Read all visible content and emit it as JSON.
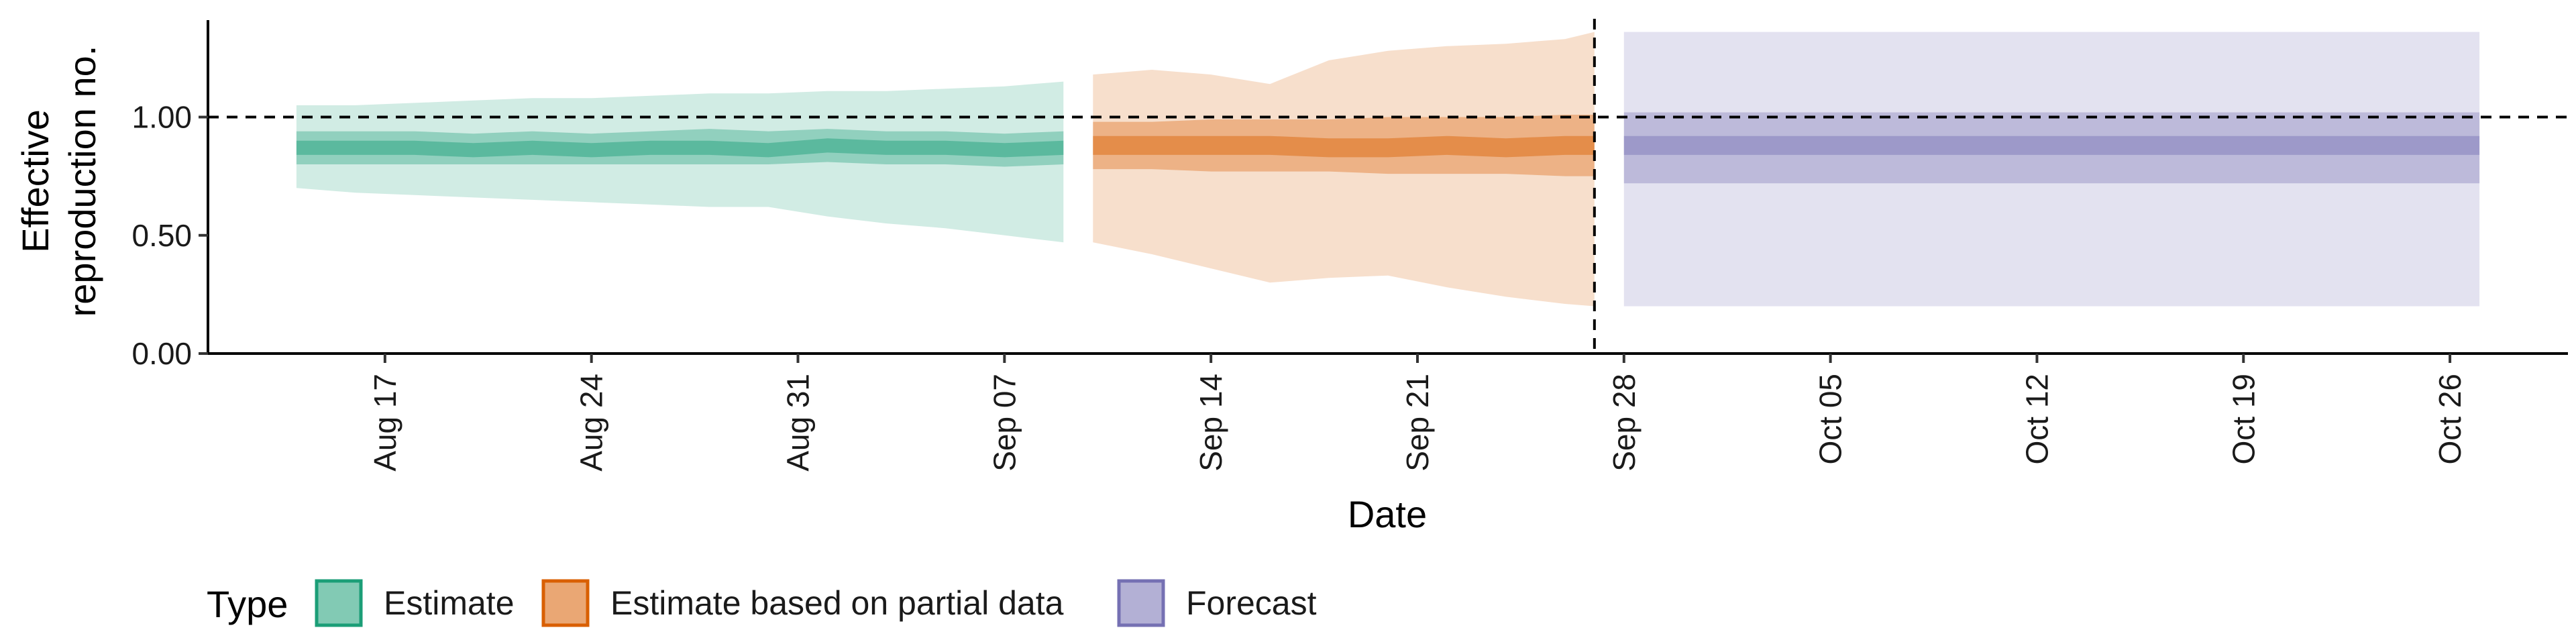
{
  "chart_data": {
    "type": "area",
    "xlabel": "Date",
    "ylabel_lines": [
      "Effective",
      "reproduction no."
    ],
    "ylim": [
      0,
      1.41
    ],
    "y_ticks": [
      0,
      0.5,
      1.0
    ],
    "y_tick_labels": [
      "0.00",
      "0.50",
      "1.00"
    ],
    "x_range": [
      "2021-08-11",
      "2021-10-30"
    ],
    "x_ticks": [
      "2021-08-17",
      "2021-08-24",
      "2021-08-31",
      "2021-09-07",
      "2021-09-14",
      "2021-09-21",
      "2021-09-28",
      "2021-10-05",
      "2021-10-12",
      "2021-10-19",
      "2021-10-26"
    ],
    "x_tick_labels": [
      "Aug 17",
      "Aug 24",
      "Aug 31",
      "Sep 07",
      "Sep 14",
      "Sep 21",
      "Sep 28",
      "Oct 05",
      "Oct 12",
      "Oct 19",
      "Oct 26"
    ],
    "reference_hline": 1.0,
    "reference_vline": "2021-09-27",
    "grid": false,
    "legend": {
      "position": "bottom-left",
      "title": "Type",
      "entries": [
        {
          "label": "Estimate",
          "color": "#1b9e77"
        },
        {
          "label": "Estimate based on partial data",
          "color": "#d95f02"
        },
        {
          "label": "Forecast",
          "color": "#7570b3"
        }
      ]
    },
    "series": [
      {
        "name": "Estimate",
        "color": "#1b9e77",
        "x": [
          "2021-08-14",
          "2021-08-16",
          "2021-08-18",
          "2021-08-20",
          "2021-08-22",
          "2021-08-24",
          "2021-08-26",
          "2021-08-28",
          "2021-08-30",
          "2021-09-01",
          "2021-09-03",
          "2021-09-05",
          "2021-09-07",
          "2021-09-09"
        ],
        "median": [
          0.87,
          0.87,
          0.87,
          0.86,
          0.87,
          0.86,
          0.87,
          0.87,
          0.86,
          0.88,
          0.87,
          0.87,
          0.86,
          0.87
        ],
        "lower20": [
          0.84,
          0.84,
          0.84,
          0.83,
          0.84,
          0.83,
          0.84,
          0.84,
          0.83,
          0.85,
          0.84,
          0.84,
          0.83,
          0.84
        ],
        "upper20": [
          0.9,
          0.9,
          0.9,
          0.89,
          0.9,
          0.89,
          0.9,
          0.9,
          0.89,
          0.91,
          0.9,
          0.9,
          0.89,
          0.9
        ],
        "lower50": [
          0.8,
          0.8,
          0.8,
          0.8,
          0.8,
          0.8,
          0.8,
          0.8,
          0.8,
          0.81,
          0.8,
          0.8,
          0.79,
          0.8
        ],
        "upper50": [
          0.94,
          0.94,
          0.94,
          0.93,
          0.94,
          0.93,
          0.94,
          0.95,
          0.94,
          0.95,
          0.94,
          0.94,
          0.93,
          0.94
        ],
        "lower90": [
          0.7,
          0.68,
          0.67,
          0.66,
          0.65,
          0.64,
          0.63,
          0.62,
          0.62,
          0.58,
          0.55,
          0.53,
          0.5,
          0.47
        ],
        "upper90": [
          1.05,
          1.05,
          1.06,
          1.07,
          1.08,
          1.08,
          1.09,
          1.1,
          1.1,
          1.11,
          1.11,
          1.12,
          1.13,
          1.15
        ]
      },
      {
        "name": "Estimate based on partial data",
        "color": "#d95f02",
        "x": [
          "2021-09-10",
          "2021-09-12",
          "2021-09-14",
          "2021-09-16",
          "2021-09-18",
          "2021-09-20",
          "2021-09-22",
          "2021-09-24",
          "2021-09-26",
          "2021-09-27"
        ],
        "median": [
          0.88,
          0.88,
          0.88,
          0.88,
          0.87,
          0.87,
          0.88,
          0.87,
          0.88,
          0.88
        ],
        "lower20": [
          0.84,
          0.84,
          0.84,
          0.84,
          0.83,
          0.83,
          0.84,
          0.83,
          0.84,
          0.84
        ],
        "upper20": [
          0.92,
          0.92,
          0.92,
          0.92,
          0.91,
          0.91,
          0.92,
          0.91,
          0.92,
          0.92
        ],
        "lower50": [
          0.78,
          0.78,
          0.77,
          0.77,
          0.77,
          0.76,
          0.76,
          0.76,
          0.75,
          0.75
        ],
        "upper50": [
          0.98,
          0.98,
          0.99,
          0.99,
          0.99,
          1.0,
          1.0,
          1.0,
          1.01,
          1.01
        ],
        "lower90": [
          0.47,
          0.42,
          0.36,
          0.3,
          0.32,
          0.33,
          0.28,
          0.24,
          0.21,
          0.2
        ],
        "upper90": [
          1.18,
          1.2,
          1.18,
          1.14,
          1.24,
          1.28,
          1.3,
          1.31,
          1.33,
          1.36
        ]
      },
      {
        "name": "Forecast",
        "color": "#7570b3",
        "x": [
          "2021-09-28",
          "2021-10-27"
        ],
        "median": [
          0.88,
          0.88
        ],
        "lower20": [
          0.84,
          0.84
        ],
        "upper20": [
          0.92,
          0.92
        ],
        "lower50": [
          0.72,
          0.72
        ],
        "upper50": [
          1.02,
          1.02
        ],
        "lower90": [
          0.2,
          0.2
        ],
        "upper90": [
          1.36,
          1.36
        ]
      }
    ]
  }
}
